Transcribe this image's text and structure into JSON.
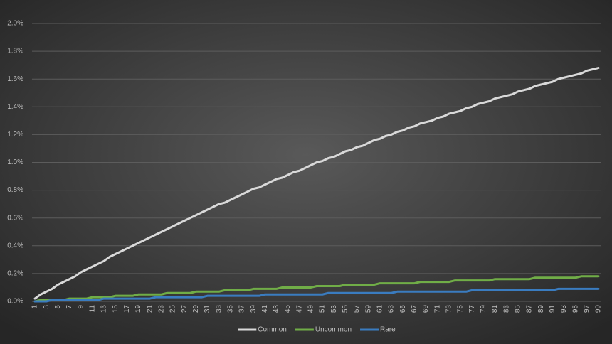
{
  "chart_data": {
    "type": "line",
    "categories": [
      1,
      null,
      3,
      null,
      5,
      null,
      7,
      null,
      9,
      null,
      11,
      null,
      13,
      null,
      15,
      null,
      17,
      null,
      19,
      null,
      21,
      null,
      23,
      null,
      25,
      null,
      27,
      null,
      29,
      null,
      31,
      null,
      33,
      null,
      35,
      null,
      37,
      null,
      39,
      null,
      41,
      null,
      43,
      null,
      45,
      null,
      47,
      null,
      49,
      null,
      51,
      null,
      53,
      null,
      55,
      null,
      57,
      null,
      59,
      null,
      61,
      null,
      63,
      null,
      65,
      null,
      67,
      null,
      69,
      null,
      71,
      null,
      73,
      null,
      75,
      null,
      77,
      null,
      79,
      null,
      81,
      null,
      83,
      null,
      85,
      null,
      87,
      null,
      89,
      null,
      91,
      null,
      93,
      null,
      95,
      null,
      97,
      null,
      99
    ],
    "series": [
      {
        "name": "Common",
        "color": "#d9d9d9",
        "values": [
          0.02,
          0.05,
          0.07,
          0.09,
          0.12,
          0.14,
          0.16,
          0.18,
          0.21,
          0.23,
          0.25,
          0.27,
          0.29,
          0.32,
          0.34,
          0.36,
          0.38,
          0.4,
          0.42,
          0.44,
          0.46,
          0.48,
          0.5,
          0.52,
          0.54,
          0.56,
          0.58,
          0.6,
          0.62,
          0.64,
          0.66,
          0.68,
          0.7,
          0.71,
          0.73,
          0.75,
          0.77,
          0.79,
          0.81,
          0.82,
          0.84,
          0.86,
          0.88,
          0.89,
          0.91,
          0.93,
          0.94,
          0.96,
          0.98,
          1.0,
          1.01,
          1.03,
          1.04,
          1.06,
          1.08,
          1.09,
          1.11,
          1.12,
          1.14,
          1.16,
          1.17,
          1.19,
          1.2,
          1.22,
          1.23,
          1.25,
          1.26,
          1.28,
          1.29,
          1.3,
          1.32,
          1.33,
          1.35,
          1.36,
          1.37,
          1.39,
          1.4,
          1.42,
          1.43,
          1.44,
          1.46,
          1.47,
          1.48,
          1.49,
          1.51,
          1.52,
          1.53,
          1.55,
          1.56,
          1.57,
          1.58,
          1.6,
          1.61,
          1.62,
          1.63,
          1.64,
          1.66,
          1.67,
          1.68
        ]
      },
      {
        "name": "Uncommon",
        "color": "#70ad47",
        "values": [
          0,
          0.01,
          0.01,
          0.01,
          0.01,
          0.01,
          0.02,
          0.02,
          0.02,
          0.02,
          0.03,
          0.03,
          0.03,
          0.03,
          0.04,
          0.04,
          0.04,
          0.04,
          0.05,
          0.05,
          0.05,
          0.05,
          0.05,
          0.06,
          0.06,
          0.06,
          0.06,
          0.06,
          0.07,
          0.07,
          0.07,
          0.07,
          0.07,
          0.08,
          0.08,
          0.08,
          0.08,
          0.08,
          0.09,
          0.09,
          0.09,
          0.09,
          0.09,
          0.1,
          0.1,
          0.1,
          0.1,
          0.1,
          0.1,
          0.11,
          0.11,
          0.11,
          0.11,
          0.11,
          0.12,
          0.12,
          0.12,
          0.12,
          0.12,
          0.12,
          0.13,
          0.13,
          0.13,
          0.13,
          0.13,
          0.13,
          0.13,
          0.14,
          0.14,
          0.14,
          0.14,
          0.14,
          0.14,
          0.15,
          0.15,
          0.15,
          0.15,
          0.15,
          0.15,
          0.15,
          0.16,
          0.16,
          0.16,
          0.16,
          0.16,
          0.16,
          0.16,
          0.17,
          0.17,
          0.17,
          0.17,
          0.17,
          0.17,
          0.17,
          0.17,
          0.18,
          0.18,
          0.18,
          0.18
        ]
      },
      {
        "name": "Rare",
        "color": "#3a7cc0",
        "values": [
          0,
          0,
          0,
          0.01,
          0.01,
          0.01,
          0.01,
          0.01,
          0.01,
          0.01,
          0.01,
          0.01,
          0.02,
          0.02,
          0.02,
          0.02,
          0.02,
          0.02,
          0.02,
          0.02,
          0.02,
          0.03,
          0.03,
          0.03,
          0.03,
          0.03,
          0.03,
          0.03,
          0.03,
          0.03,
          0.04,
          0.04,
          0.04,
          0.04,
          0.04,
          0.04,
          0.04,
          0.04,
          0.04,
          0.04,
          0.05,
          0.05,
          0.05,
          0.05,
          0.05,
          0.05,
          0.05,
          0.05,
          0.05,
          0.05,
          0.05,
          0.06,
          0.06,
          0.06,
          0.06,
          0.06,
          0.06,
          0.06,
          0.06,
          0.06,
          0.06,
          0.06,
          0.06,
          0.07,
          0.07,
          0.07,
          0.07,
          0.07,
          0.07,
          0.07,
          0.07,
          0.07,
          0.07,
          0.07,
          0.07,
          0.07,
          0.08,
          0.08,
          0.08,
          0.08,
          0.08,
          0.08,
          0.08,
          0.08,
          0.08,
          0.08,
          0.08,
          0.08,
          0.08,
          0.08,
          0.08,
          0.09,
          0.09,
          0.09,
          0.09,
          0.09,
          0.09,
          0.09,
          0.09
        ]
      }
    ],
    "ylim": [
      0,
      2
    ],
    "yticks": [
      {
        "value": 0,
        "label": "0.0%"
      },
      {
        "value": 0.2,
        "label": "0.2%"
      },
      {
        "value": 0.4,
        "label": "0.4%"
      },
      {
        "value": 0.6,
        "label": "0.6%"
      },
      {
        "value": 0.8,
        "label": "0.8%"
      },
      {
        "value": 1.0,
        "label": "1.0%"
      },
      {
        "value": 1.2,
        "label": "1.2%"
      },
      {
        "value": 1.4,
        "label": "1.4%"
      },
      {
        "value": 1.6,
        "label": "1.6%"
      },
      {
        "value": 1.8,
        "label": "1.8%"
      },
      {
        "value": 2.0,
        "label": "2.0%"
      }
    ],
    "grid": true,
    "legend": "bottom"
  }
}
